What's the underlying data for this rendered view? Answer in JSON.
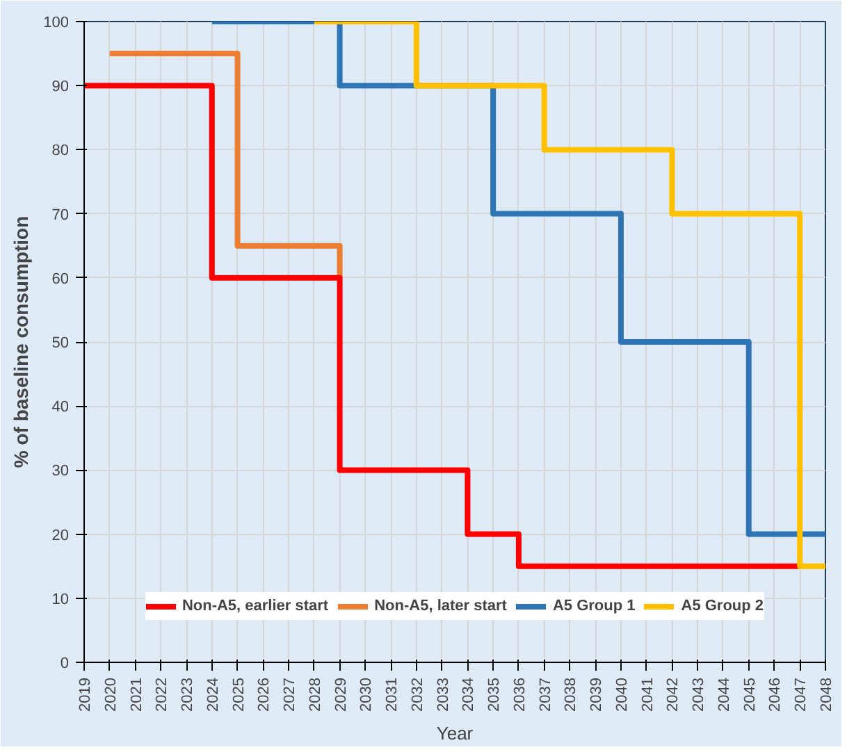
{
  "chart_data": {
    "type": "step",
    "xlabel": "Year",
    "ylabel": "% of baseline consumption",
    "xlim": [
      2019,
      2048
    ],
    "xticks": [
      2019,
      2020,
      2021,
      2022,
      2023,
      2024,
      2025,
      2026,
      2027,
      2028,
      2029,
      2030,
      2031,
      2032,
      2033,
      2034,
      2035,
      2036,
      2037,
      2038,
      2039,
      2040,
      2041,
      2042,
      2043,
      2044,
      2045,
      2046,
      2047,
      2048
    ],
    "ylim": [
      0,
      100
    ],
    "yticks": [
      0,
      10,
      20,
      30,
      40,
      50,
      60,
      70,
      80,
      90,
      100
    ],
    "grid": true,
    "legend": "bottom",
    "line_style": "solid",
    "marker": "none",
    "series": [
      {
        "name": "Non-A5, earlier start",
        "color": "#ff0000",
        "x": [
          2019,
          2024,
          2029,
          2034,
          2036,
          2047
        ],
        "values": [
          90,
          60,
          30,
          20,
          15,
          15
        ]
      },
      {
        "name": "Non-A5, later start",
        "color": "#ed7d31",
        "x": [
          2020,
          2025,
          2029
        ],
        "values": [
          95,
          65,
          60
        ]
      },
      {
        "name": "A5 Group 1",
        "color": "#2e75b6",
        "x": [
          2024,
          2029,
          2035,
          2040,
          2045,
          2048
        ],
        "values": [
          100,
          90,
          70,
          50,
          20,
          20
        ]
      },
      {
        "name": "A5 Group 2",
        "color": "#ffc000",
        "x": [
          2028,
          2032,
          2037,
          2042,
          2047,
          2048
        ],
        "values": [
          100,
          90,
          80,
          70,
          15,
          15
        ]
      }
    ]
  }
}
